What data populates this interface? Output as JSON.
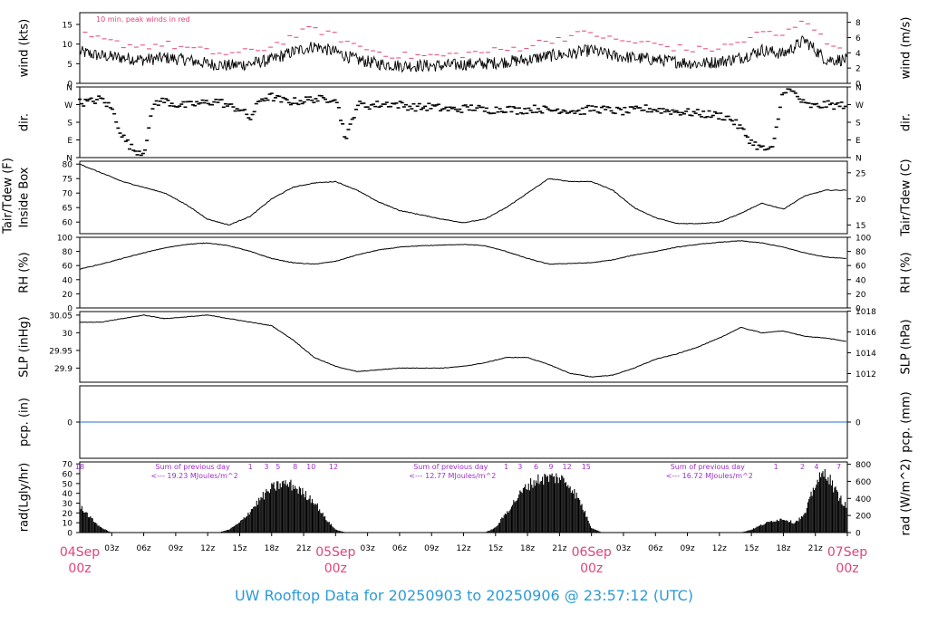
{
  "footer_title": "UW Rooftop Data for 20250903  to  20250906 @ 23:57:12  (UTC)",
  "colors": {
    "trace": "#000000",
    "peak": "#e0447a",
    "precip": "#2a6fc4",
    "annotation": "#9b30c8",
    "date": "#e0447a",
    "title": "#2b9bd6",
    "frame": "#000000"
  },
  "time_axis": {
    "range_hours": [
      0,
      72
    ],
    "tick_hours": [
      3,
      6,
      9,
      12,
      15,
      18,
      21,
      24,
      27,
      30,
      33,
      36,
      39,
      42,
      45,
      48,
      51,
      54,
      57,
      60,
      63,
      66,
      69,
      72
    ],
    "tick_labels": [
      "03z",
      "06z",
      "09z",
      "12z",
      "15z",
      "18z",
      "21z",
      "",
      "03z",
      "06z",
      "09z",
      "12z",
      "15z",
      "18z",
      "21z",
      "",
      "03z",
      "06z",
      "09z",
      "12z",
      "15z",
      "18z",
      "21z",
      ""
    ],
    "date_labels": [
      {
        "hour": 0,
        "day": "04Sep",
        "time": "00z"
      },
      {
        "hour": 24,
        "day": "05Sep",
        "time": "00z"
      },
      {
        "hour": 48,
        "day": "06Sep",
        "time": "00z"
      },
      {
        "hour": 72,
        "day": "07Sep",
        "time": "00z"
      }
    ]
  },
  "chart_data": [
    {
      "id": "wind",
      "type": "line",
      "left_label": "wind (kts)",
      "right_label": "wind (m/s)",
      "ylim": [
        0,
        18
      ],
      "left_ticks": [
        0,
        5,
        10,
        15
      ],
      "right_ylim_ms": [
        0,
        9.26
      ],
      "right_ticks": [
        0,
        2,
        4,
        6,
        8
      ],
      "annotation": "10 min. peak winds in red",
      "x": [
        0,
        2,
        4,
        6,
        8,
        10,
        12,
        14,
        16,
        18,
        20,
        22,
        24,
        26,
        28,
        30,
        32,
        34,
        36,
        38,
        40,
        42,
        44,
        46,
        48,
        50,
        52,
        54,
        56,
        58,
        60,
        62,
        64,
        66,
        68,
        70,
        72
      ],
      "series": [
        {
          "role": "mean",
          "values": [
            8,
            7,
            6.5,
            6,
            6.5,
            6,
            5,
            4.5,
            5,
            6,
            8,
            9.5,
            8,
            6,
            5,
            4.5,
            4.5,
            4.5,
            4.8,
            5,
            5.5,
            6,
            7,
            7.5,
            8.5,
            7,
            6.5,
            6,
            5.5,
            5,
            5.5,
            6.5,
            8.5,
            7.5,
            11,
            6,
            6
          ]
        },
        {
          "role": "peak",
          "values": [
            12.5,
            11,
            10,
            9.5,
            10,
            9,
            8,
            7.5,
            8,
            9.5,
            12,
            14,
            12,
            9.5,
            8,
            7,
            7,
            7,
            7.5,
            8,
            8.5,
            9.5,
            11,
            12,
            13,
            11,
            10.5,
            10,
            9,
            8.5,
            9,
            10.5,
            13,
            12,
            17,
            10,
            10
          ]
        }
      ]
    },
    {
      "id": "dir",
      "type": "scatter",
      "left_label": "dir.",
      "right_label": "dir.",
      "ylim": [
        0,
        360
      ],
      "tick_values": [
        0,
        90,
        180,
        270,
        360
      ],
      "tick_labels": [
        "N",
        "E",
        "S",
        "W",
        "N"
      ],
      "x": [
        0,
        1,
        2,
        3,
        4,
        5,
        6,
        7,
        8,
        9,
        10,
        11,
        12,
        13,
        14,
        15,
        16,
        17,
        18,
        19,
        20,
        21,
        22,
        23,
        24,
        25,
        26,
        27,
        28,
        29,
        30,
        31,
        32,
        33,
        34,
        35,
        36,
        37,
        38,
        39,
        40,
        41,
        42,
        43,
        44,
        45,
        46,
        47,
        48,
        49,
        50,
        51,
        52,
        53,
        54,
        55,
        56,
        57,
        58,
        59,
        60,
        61,
        62,
        63,
        64,
        65,
        66,
        67,
        68,
        69,
        70,
        71,
        72
      ],
      "values": [
        280,
        285,
        300,
        250,
        110,
        40,
        25,
        280,
        290,
        270,
        265,
        275,
        280,
        290,
        260,
        250,
        200,
        300,
        310,
        290,
        285,
        290,
        300,
        295,
        310,
        90,
        270,
        265,
        270,
        275,
        270,
        260,
        255,
        260,
        250,
        245,
        250,
        255,
        240,
        245,
        250,
        240,
        245,
        250,
        240,
        245,
        240,
        235,
        250,
        245,
        240,
        235,
        240,
        250,
        245,
        240,
        235,
        230,
        225,
        220,
        215,
        200,
        150,
        80,
        45,
        40,
        350,
        330,
        270,
        260,
        270,
        265,
        270
      ]
    },
    {
      "id": "temp",
      "type": "line",
      "left_label": "Tair/Tdew (F)\nInside Box",
      "right_label": "Tair/Tdew (C)",
      "ylim": [
        56,
        81
      ],
      "left_ticks": [
        60,
        65,
        70,
        75,
        80
      ],
      "right_ticks": [
        15,
        20,
        25
      ],
      "x": [
        0,
        2,
        4,
        6,
        8,
        10,
        12,
        14,
        16,
        18,
        20,
        22,
        24,
        26,
        28,
        30,
        32,
        34,
        36,
        38,
        40,
        42,
        44,
        46,
        48,
        50,
        52,
        54,
        56,
        58,
        60,
        62,
        64,
        66,
        68,
        70,
        72
      ],
      "values": [
        80,
        77,
        74,
        72,
        70,
        66,
        61,
        59,
        62,
        68,
        72,
        73.5,
        74,
        71,
        67,
        64,
        62.5,
        61,
        59.8,
        61,
        65,
        70,
        75,
        74,
        74,
        71,
        65,
        61.5,
        59.5,
        59.5,
        60,
        63,
        66.5,
        64.5,
        69,
        71,
        71
      ]
    },
    {
      "id": "rh",
      "type": "line",
      "left_label": "RH (%)",
      "right_label": "RH (%)",
      "ylim": [
        0,
        100
      ],
      "left_ticks": [
        0,
        20,
        40,
        60,
        80,
        100
      ],
      "right_ticks": [
        0,
        20,
        40,
        60,
        80,
        100
      ],
      "x": [
        0,
        2,
        4,
        6,
        8,
        10,
        12,
        14,
        16,
        18,
        20,
        22,
        24,
        26,
        28,
        30,
        32,
        34,
        36,
        38,
        40,
        42,
        44,
        46,
        48,
        50,
        52,
        54,
        56,
        58,
        60,
        62,
        64,
        66,
        68,
        70,
        72
      ],
      "values": [
        55,
        62,
        70,
        78,
        85,
        90,
        92,
        88,
        80,
        70,
        64,
        62,
        66,
        75,
        82,
        86,
        88,
        89,
        90,
        88,
        80,
        70,
        62,
        63,
        64,
        68,
        75,
        80,
        86,
        90,
        93,
        95,
        92,
        86,
        78,
        72,
        70
      ]
    },
    {
      "id": "slp",
      "type": "line",
      "left_label": "SLP (inHg)",
      "right_label": "SLP (hPa)",
      "ylim": [
        29.86,
        30.06
      ],
      "left_ticks": [
        29.9,
        29.95,
        30.0,
        30.05
      ],
      "right_ticks": [
        1012,
        1014,
        1016,
        1018
      ],
      "x": [
        0,
        2,
        4,
        6,
        8,
        10,
        12,
        14,
        16,
        18,
        20,
        22,
        24,
        26,
        28,
        30,
        32,
        34,
        36,
        38,
        40,
        42,
        44,
        46,
        48,
        50,
        52,
        54,
        56,
        58,
        60,
        62,
        64,
        66,
        68,
        70,
        72
      ],
      "values": [
        30.03,
        30.03,
        30.04,
        30.05,
        30.04,
        30.045,
        30.05,
        30.04,
        30.03,
        30.02,
        29.98,
        29.93,
        29.905,
        29.89,
        29.895,
        29.9,
        29.9,
        29.9,
        29.905,
        29.915,
        29.93,
        29.93,
        29.91,
        29.885,
        29.875,
        29.88,
        29.9,
        29.925,
        29.94,
        29.96,
        29.985,
        30.015,
        30.0,
        30.005,
        29.99,
        29.985,
        29.975
      ]
    },
    {
      "id": "pcp",
      "type": "line",
      "left_label": "pcp. (in)",
      "right_label": "pcp. (mm)",
      "ylim": [
        -1,
        1
      ],
      "left_ticks": [
        0
      ],
      "right_ticks": [
        0
      ],
      "x": [
        0,
        72
      ],
      "values": [
        0,
        0
      ]
    },
    {
      "id": "rad",
      "type": "area",
      "left_label": "rad(Lgly/hr)",
      "right_label": "rad (W/m^2)",
      "ylim": [
        0,
        72
      ],
      "left_ticks": [
        0,
        10,
        20,
        30,
        40,
        50,
        60,
        70
      ],
      "right_ticks": [
        0,
        200,
        400,
        600,
        800
      ],
      "x": [
        0,
        1,
        2,
        3,
        4,
        5,
        6,
        7,
        8,
        9,
        10,
        11,
        12,
        13,
        14,
        15,
        16,
        17,
        18,
        19,
        20,
        21,
        22,
        23,
        24,
        25,
        26,
        27,
        28,
        29,
        30,
        31,
        32,
        33,
        34,
        35,
        36,
        37,
        38,
        39,
        40,
        41,
        42,
        43,
        44,
        45,
        46,
        47,
        48,
        49,
        50,
        51,
        52,
        53,
        54,
        55,
        56,
        57,
        58,
        59,
        60,
        61,
        62,
        63,
        64,
        65,
        66,
        67,
        68,
        69,
        70,
        71,
        72
      ],
      "values": [
        28,
        15,
        5,
        0,
        0,
        0,
        0,
        0,
        0,
        0,
        0,
        0,
        0,
        0,
        3,
        10,
        22,
        35,
        45,
        50,
        48,
        40,
        32,
        15,
        3,
        0,
        0,
        0,
        0,
        0,
        0,
        0,
        0,
        0,
        0,
        0,
        0,
        0,
        0,
        5,
        20,
        35,
        48,
        54,
        56,
        56,
        48,
        30,
        5,
        0,
        0,
        0,
        0,
        0,
        0,
        0,
        0,
        0,
        0,
        0,
        0,
        0,
        0,
        3,
        8,
        12,
        14,
        10,
        18,
        50,
        62,
        40,
        25
      ],
      "hour_marks": [
        {
          "hour": 0,
          "text": "18"
        },
        {
          "hour": 16,
          "text": "1"
        },
        {
          "hour": 17.5,
          "text": "3"
        },
        {
          "hour": 18.6,
          "text": "5"
        },
        {
          "hour": 20.2,
          "text": "8"
        },
        {
          "hour": 21.7,
          "text": "10"
        },
        {
          "hour": 23.8,
          "text": "12"
        },
        {
          "hour": 40,
          "text": "1"
        },
        {
          "hour": 41.3,
          "text": "3"
        },
        {
          "hour": 42.8,
          "text": "6"
        },
        {
          "hour": 44.2,
          "text": "9"
        },
        {
          "hour": 45.7,
          "text": "12"
        },
        {
          "hour": 47.5,
          "text": "15"
        },
        {
          "hour": 65.3,
          "text": "1"
        },
        {
          "hour": 67.8,
          "text": "2"
        },
        {
          "hour": 69.1,
          "text": "4"
        },
        {
          "hour": 71.2,
          "text": "7"
        }
      ],
      "daily_sums": [
        {
          "hour": 7.1,
          "line1": "Sum of previous day",
          "line2": "<--- 19.23 MJoules/m^2"
        },
        {
          "hour": 31.3,
          "line1": "Sum of previous day",
          "line2": "<--- 12.77 MJoules/m^2"
        },
        {
          "hour": 55.4,
          "line1": "Sum of previous day",
          "line2": "<--- 16.72 MJoules/m^2"
        }
      ]
    }
  ]
}
